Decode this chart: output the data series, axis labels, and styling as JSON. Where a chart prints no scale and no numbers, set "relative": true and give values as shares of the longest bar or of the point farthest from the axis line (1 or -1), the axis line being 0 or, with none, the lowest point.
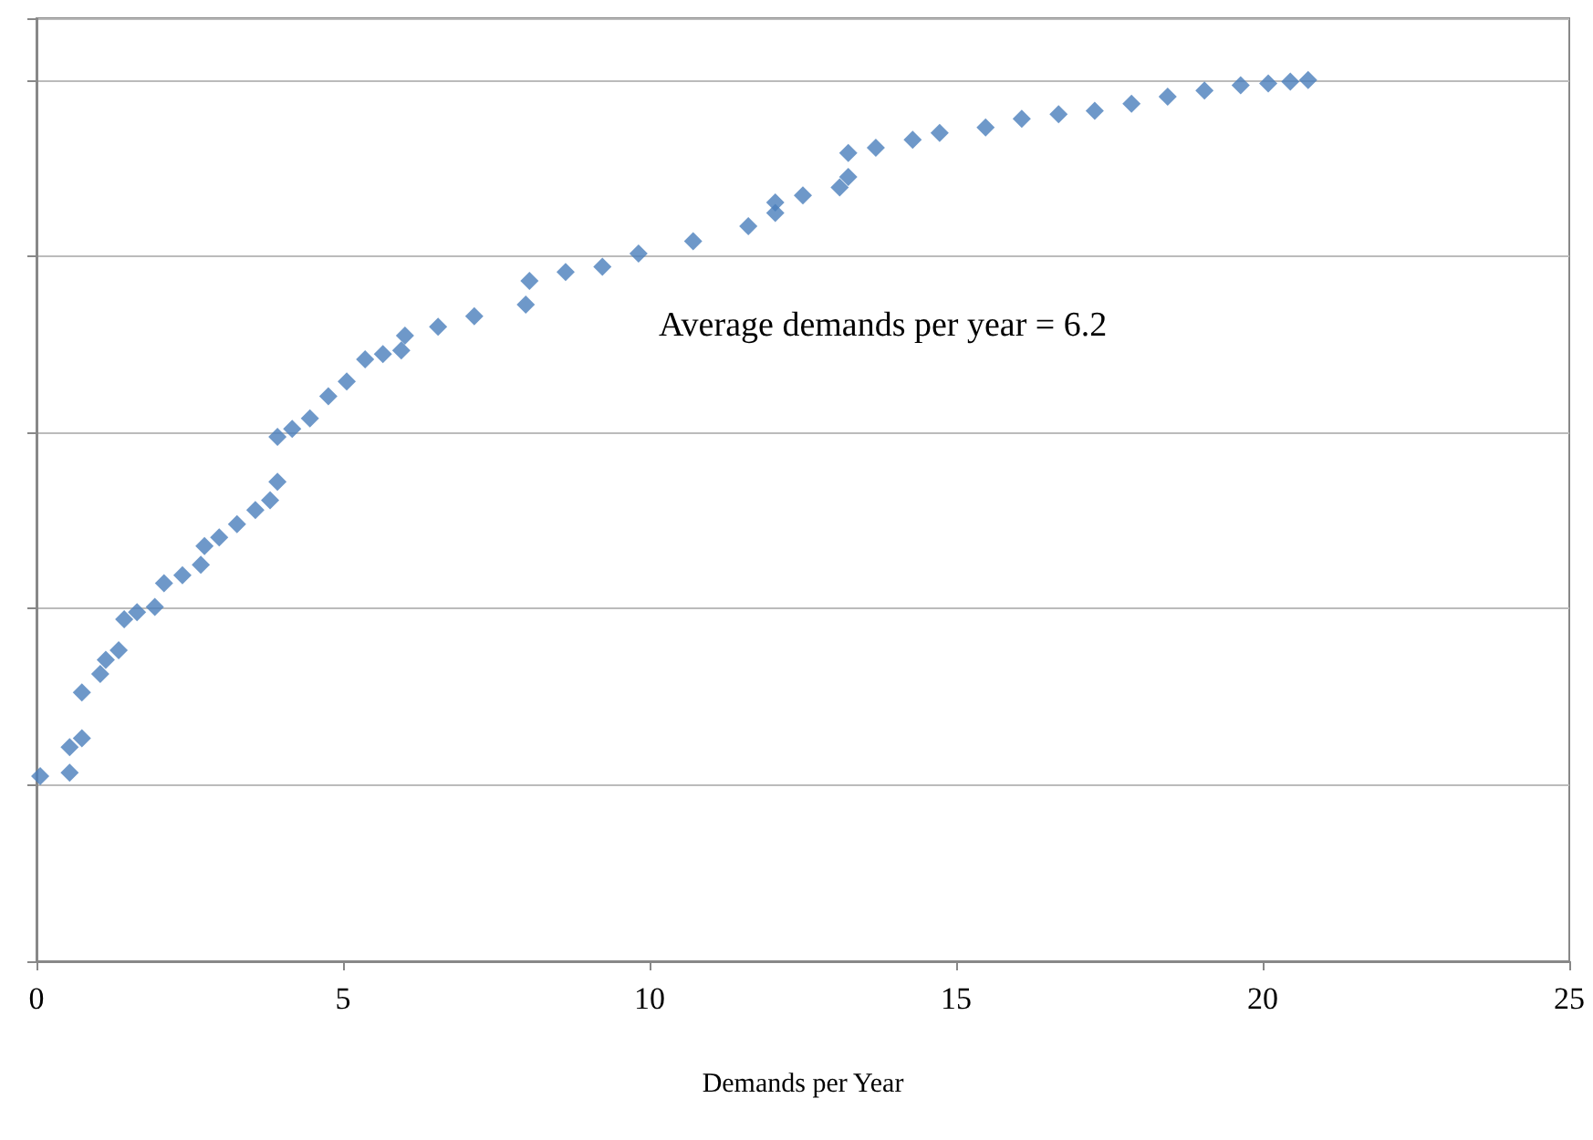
{
  "chart_data": {
    "type": "scatter",
    "xlabel": "Demands per Year",
    "annotations": [
      "Average demands per year = 6.2"
    ],
    "relative": true,
    "marker": "diamond",
    "grid": "y",
    "xlim": [
      0,
      25
    ],
    "xticks": [
      0,
      5,
      10,
      15,
      20,
      25
    ],
    "tick_labels": "x",
    "series": [
      {
        "color": "#4a7ebb",
        "x": [
          0.06,
          0.54,
          0.54,
          0.74,
          0.74,
          1.04,
          1.13,
          1.34,
          1.43,
          1.64,
          1.93,
          2.08,
          2.38,
          2.68,
          2.74,
          2.98,
          3.27,
          3.57,
          3.81,
          3.93,
          3.93,
          4.17,
          4.46,
          4.76,
          5.06,
          5.36,
          5.65,
          5.95,
          6.01,
          6.55,
          7.14,
          7.98,
          8.04,
          8.63,
          9.23,
          9.82,
          10.71,
          11.61,
          12.05,
          12.05,
          12.5,
          13.1,
          13.24,
          13.24,
          13.69,
          14.29,
          14.73,
          15.48,
          16.07,
          16.67,
          17.26,
          17.86,
          18.45,
          19.05,
          19.64,
          20.09,
          20.45,
          20.74
        ],
        "values": [
          0.21,
          0.214,
          0.243,
          0.253,
          0.305,
          0.326,
          0.342,
          0.353,
          0.388,
          0.396,
          0.402,
          0.429,
          0.438,
          0.45,
          0.471,
          0.481,
          0.496,
          0.512,
          0.523,
          0.544,
          0.595,
          0.604,
          0.616,
          0.641,
          0.658,
          0.683,
          0.689,
          0.693,
          0.71,
          0.72,
          0.732,
          0.745,
          0.772,
          0.782,
          0.788,
          0.803,
          0.817,
          0.834,
          0.849,
          0.861,
          0.869,
          0.878,
          0.89,
          0.917,
          0.923,
          0.932,
          0.94,
          0.946,
          0.956,
          0.961,
          0.965,
          0.973,
          0.981,
          0.988,
          0.994,
          0.996,
          0.998,
          1
        ]
      }
    ]
  }
}
